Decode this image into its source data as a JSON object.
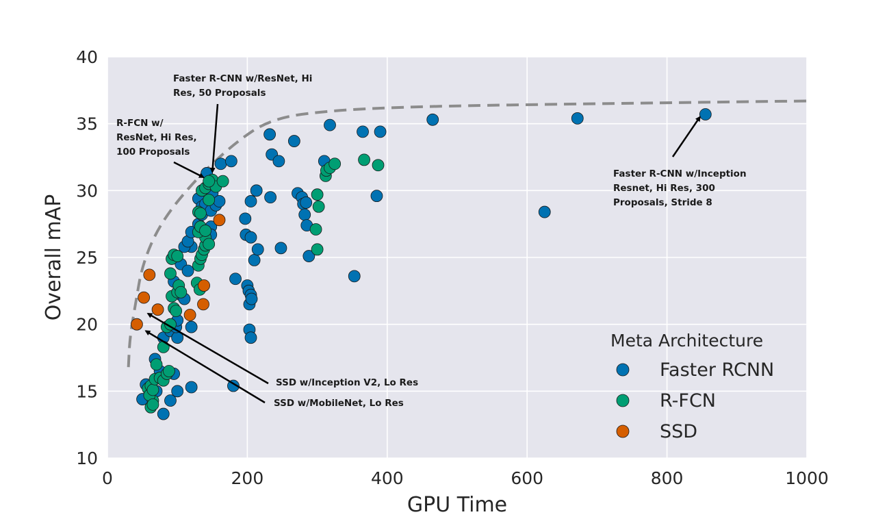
{
  "chart_data": {
    "type": "scatter",
    "xlabel": "GPU Time",
    "ylabel": "Overall mAP",
    "xlim": [
      0,
      1000
    ],
    "ylim": [
      10,
      40
    ],
    "xticks": [
      "0",
      "200",
      "400",
      "600",
      "800",
      "1000"
    ],
    "yticks": [
      "10",
      "15",
      "20",
      "25",
      "30",
      "35",
      "40"
    ],
    "grid": true,
    "legend": {
      "title": "Meta Architecture",
      "position": "bottom-right"
    },
    "series": [
      {
        "name": "Faster RCNN",
        "color": "#0072b2",
        "points": [
          [
            50,
            14.4
          ],
          [
            55,
            15.5
          ],
          [
            60,
            15.3
          ],
          [
            70,
            15.0
          ],
          [
            75,
            16.5
          ],
          [
            80,
            13.3
          ],
          [
            90,
            14.3
          ],
          [
            95,
            16.3
          ],
          [
            100,
            15.0
          ],
          [
            120,
            15.3
          ],
          [
            68,
            17.4
          ],
          [
            80,
            19.0
          ],
          [
            90,
            19.5
          ],
          [
            100,
            19.0
          ],
          [
            98,
            19.8
          ],
          [
            100,
            20.3
          ],
          [
            120,
            19.8
          ],
          [
            95,
            23.2
          ],
          [
            105,
            22.2
          ],
          [
            110,
            21.9
          ],
          [
            105,
            24.5
          ],
          [
            115,
            24.0
          ],
          [
            120,
            25.8
          ],
          [
            110,
            25.8
          ],
          [
            115,
            26.2
          ],
          [
            120,
            26.9
          ],
          [
            130,
            27.5
          ],
          [
            135,
            28.2
          ],
          [
            130,
            29.4
          ],
          [
            135,
            28.8
          ],
          [
            140,
            29.0
          ],
          [
            142,
            31.3
          ],
          [
            148,
            28.5
          ],
          [
            150,
            29.8
          ],
          [
            155,
            28.9
          ],
          [
            160,
            29.2
          ],
          [
            162,
            32.0
          ],
          [
            177,
            32.2
          ],
          [
            148,
            27.3
          ],
          [
            148,
            26.7
          ],
          [
            180,
            15.4
          ],
          [
            183,
            23.4
          ],
          [
            197,
            27.9
          ],
          [
            198,
            26.7
          ],
          [
            205,
            26.5
          ],
          [
            205,
            29.2
          ],
          [
            210,
            24.8
          ],
          [
            213,
            30.0
          ],
          [
            215,
            25.6
          ],
          [
            200,
            22.9
          ],
          [
            202,
            22.5
          ],
          [
            203,
            21.5
          ],
          [
            205,
            22.2
          ],
          [
            206,
            21.9
          ],
          [
            203,
            19.6
          ],
          [
            205,
            19.0
          ],
          [
            232,
            34.2
          ],
          [
            233,
            29.5
          ],
          [
            235,
            32.7
          ],
          [
            245,
            32.2
          ],
          [
            248,
            25.7
          ],
          [
            267,
            33.7
          ],
          [
            272,
            29.8
          ],
          [
            278,
            29.5
          ],
          [
            280,
            29.0
          ],
          [
            282,
            28.2
          ],
          [
            284,
            29.1
          ],
          [
            285,
            27.4
          ],
          [
            288,
            25.1
          ],
          [
            310,
            32.2
          ],
          [
            318,
            34.9
          ],
          [
            353,
            23.6
          ],
          [
            365,
            34.4
          ],
          [
            385,
            29.6
          ],
          [
            390,
            34.4
          ],
          [
            465,
            35.3
          ],
          [
            625,
            28.4
          ],
          [
            672,
            35.4
          ],
          [
            855,
            35.7
          ]
        ]
      },
      {
        "name": "R-FCN",
        "color": "#009e73",
        "points": [
          [
            58,
            15.2
          ],
          [
            62,
            13.8
          ],
          [
            65,
            14.3
          ],
          [
            60,
            14.7
          ],
          [
            62,
            15.4
          ],
          [
            65,
            14.0
          ],
          [
            65,
            15.1
          ],
          [
            68,
            15.9
          ],
          [
            70,
            17.0
          ],
          [
            75,
            16.0
          ],
          [
            80,
            15.8
          ],
          [
            85,
            16.3
          ],
          [
            88,
            16.5
          ],
          [
            80,
            18.3
          ],
          [
            85,
            19.8
          ],
          [
            90,
            20.0
          ],
          [
            92,
            22.1
          ],
          [
            95,
            21.2
          ],
          [
            98,
            21.0
          ],
          [
            100,
            22.4
          ],
          [
            102,
            22.9
          ],
          [
            105,
            22.4
          ],
          [
            90,
            23.8
          ],
          [
            92,
            24.9
          ],
          [
            95,
            25.2
          ],
          [
            100,
            25.1
          ],
          [
            128,
            23.1
          ],
          [
            132,
            22.6
          ],
          [
            130,
            24.4
          ],
          [
            133,
            24.9
          ],
          [
            135,
            25.2
          ],
          [
            138,
            25.6
          ],
          [
            140,
            25.9
          ],
          [
            140,
            26.5
          ],
          [
            145,
            26.0
          ],
          [
            130,
            26.9
          ],
          [
            133,
            27.3
          ],
          [
            140,
            27.0
          ],
          [
            130,
            28.4
          ],
          [
            133,
            28.3
          ],
          [
            135,
            30.0
          ],
          [
            140,
            30.2
          ],
          [
            145,
            30.5
          ],
          [
            145,
            29.3
          ],
          [
            150,
            30.8
          ],
          [
            155,
            30.3
          ],
          [
            165,
            30.7
          ],
          [
            145,
            30.7
          ],
          [
            298,
            27.1
          ],
          [
            300,
            25.6
          ],
          [
            300,
            29.7
          ],
          [
            302,
            28.8
          ],
          [
            312,
            31.1
          ],
          [
            313,
            31.5
          ],
          [
            318,
            31.7
          ],
          [
            325,
            32.0
          ],
          [
            367,
            32.3
          ],
          [
            387,
            31.9
          ]
        ]
      },
      {
        "name": "SSD",
        "color": "#d55e00",
        "points": [
          [
            42,
            20.0
          ],
          [
            52,
            22.0
          ],
          [
            60,
            23.7
          ],
          [
            72,
            21.1
          ],
          [
            118,
            20.7
          ],
          [
            137,
            21.5
          ],
          [
            138,
            22.9
          ],
          [
            160,
            27.8
          ]
        ]
      }
    ],
    "frontier": [
      [
        30,
        16.8
      ],
      [
        32,
        19.0
      ],
      [
        40,
        21.5
      ],
      [
        50,
        24.5
      ],
      [
        75,
        27.5
      ],
      [
        120,
        30.5
      ],
      [
        180,
        33.5
      ],
      [
        235,
        35.4
      ],
      [
        320,
        36.0
      ],
      [
        450,
        36.3
      ],
      [
        700,
        36.5
      ],
      [
        1000,
        36.7
      ]
    ],
    "annotations": [
      {
        "lines": [
          "Faster R-CNN w/ResNet, Hi",
          "Res, 50 Proposals"
        ],
        "target": [
          150,
          31.4
        ]
      },
      {
        "lines": [
          "R-FCN w/",
          "ResNet, Hi Res,",
          "100 Proposals"
        ],
        "target": [
          137,
          31.0
        ]
      },
      {
        "lines": [
          "SSD w/Inception V2, Lo Res"
        ],
        "target": [
          58,
          20.8
        ]
      },
      {
        "lines": [
          "SSD w/MobileNet, Lo Res"
        ],
        "target": [
          55,
          19.5
        ]
      },
      {
        "lines": [
          "Faster R-CNN w/Inception",
          "Resnet, Hi Res, 300",
          "Proposals, Stride 8"
        ],
        "target": [
          847,
          35.5
        ]
      }
    ]
  }
}
